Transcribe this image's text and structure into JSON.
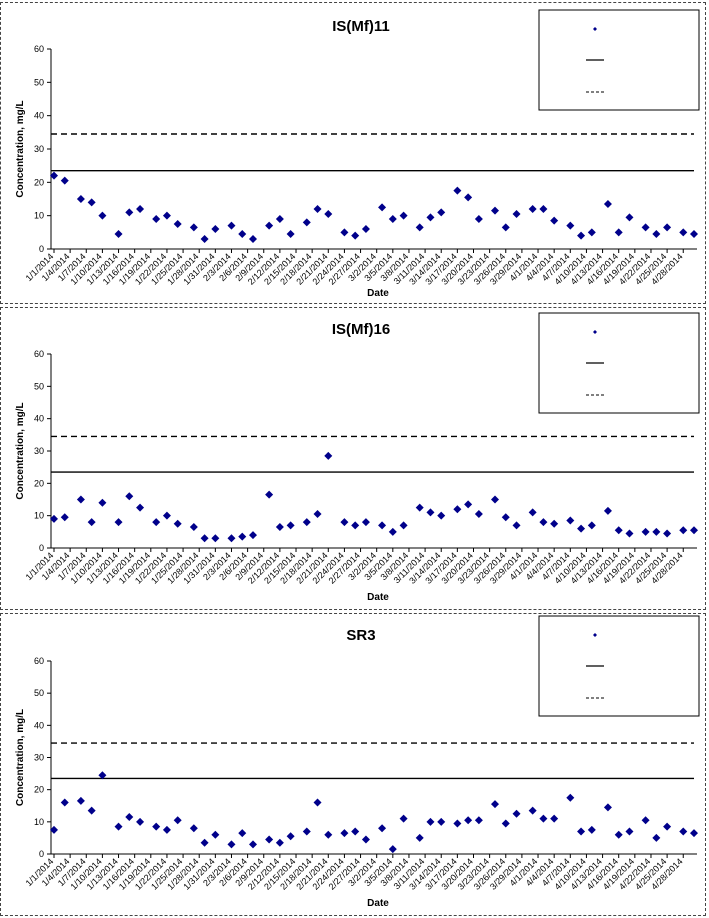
{
  "colors": {
    "marker": "#00008B",
    "line": "#000000"
  },
  "x_dates": [
    "1/1/2014",
    "1/4/2014",
    "1/7/2014",
    "1/10/2014",
    "1/13/2014",
    "1/16/2014",
    "1/19/2014",
    "1/22/2014",
    "1/25/2014",
    "1/28/2014",
    "1/31/2014",
    "2/3/2014",
    "2/6/2014",
    "2/9/2014",
    "2/12/2014",
    "2/15/2014",
    "2/18/2014",
    "2/21/2014",
    "2/24/2014",
    "2/27/2014",
    "3/2/2014",
    "3/5/2014",
    "3/8/2014",
    "3/11/2014",
    "3/14/2014",
    "3/17/2014",
    "3/20/2014",
    "3/23/2014",
    "3/26/2014",
    "3/29/2014",
    "4/1/2014",
    "4/4/2014",
    "4/7/2014",
    "4/10/2014",
    "4/13/2014",
    "4/16/2014",
    "4/19/2014",
    "4/22/2014",
    "4/25/2014",
    "4/28/2014"
  ],
  "chart_data": [
    {
      "type": "scatter",
      "title": "IS(Mf)11",
      "xlabel": "Date",
      "ylabel": "Concentration, mg/L",
      "ylim": [
        0,
        60
      ],
      "yticks": [
        0,
        10,
        20,
        30,
        40,
        50,
        60
      ],
      "grid": false,
      "legend_position": "top-right",
      "series": [
        {
          "style": "markers",
          "x": [
            "1/1/2014",
            "1/3/2014",
            "1/6/2014",
            "1/8/2014",
            "1/10/2014",
            "1/13/2014",
            "1/15/2014",
            "1/17/2014",
            "1/20/2014",
            "1/22/2014",
            "1/24/2014",
            "1/27/2014",
            "1/29/2014",
            "1/31/2014",
            "2/3/2014",
            "2/5/2014",
            "2/7/2014",
            "2/10/2014",
            "2/12/2014",
            "2/14/2014",
            "2/17/2014",
            "2/19/2014",
            "2/21/2014",
            "2/24/2014",
            "2/26/2014",
            "2/28/2014",
            "3/3/2014",
            "3/5/2014",
            "3/7/2014",
            "3/10/2014",
            "3/12/2014",
            "3/14/2014",
            "3/17/2014",
            "3/19/2014",
            "3/21/2014",
            "3/24/2014",
            "3/26/2014",
            "3/28/2014",
            "3/31/2014",
            "4/2/2014",
            "4/4/2014",
            "4/7/2014",
            "4/9/2014",
            "4/11/2014",
            "4/14/2014",
            "4/16/2014",
            "4/18/2014",
            "4/21/2014",
            "4/23/2014",
            "4/25/2014",
            "4/28/2014",
            "4/30/2014"
          ],
          "values": [
            22,
            20.5,
            15,
            14,
            10,
            4.5,
            11,
            12,
            9,
            10,
            7.5,
            6.5,
            3,
            6,
            7,
            4.5,
            3,
            7,
            9,
            4.5,
            8,
            12,
            10.5,
            5,
            4,
            6,
            12.5,
            9,
            10,
            6.5,
            9.5,
            11,
            17.5,
            15.5,
            9,
            11.5,
            6.5,
            10.5,
            12,
            12,
            8.5,
            7,
            4,
            5,
            13.5,
            5,
            9.5,
            6.5,
            4.5,
            6.5,
            5,
            4.5
          ]
        },
        {
          "style": "solid",
          "value": 23.5
        },
        {
          "style": "dashed",
          "value": 34.5
        }
      ]
    },
    {
      "type": "scatter",
      "title": "IS(Mf)16",
      "xlabel": "Date",
      "ylabel": "Concentration, mg/L",
      "ylim": [
        0,
        60
      ],
      "yticks": [
        0,
        10,
        20,
        30,
        40,
        50,
        60
      ],
      "grid": false,
      "legend_position": "top-right",
      "series": [
        {
          "style": "markers",
          "x": [
            "1/1/2014",
            "1/3/2014",
            "1/6/2014",
            "1/8/2014",
            "1/10/2014",
            "1/13/2014",
            "1/15/2014",
            "1/17/2014",
            "1/20/2014",
            "1/22/2014",
            "1/24/2014",
            "1/27/2014",
            "1/29/2014",
            "1/31/2014",
            "2/3/2014",
            "2/5/2014",
            "2/7/2014",
            "2/10/2014",
            "2/12/2014",
            "2/14/2014",
            "2/17/2014",
            "2/19/2014",
            "2/21/2014",
            "2/24/2014",
            "2/26/2014",
            "2/28/2014",
            "3/3/2014",
            "3/5/2014",
            "3/7/2014",
            "3/10/2014",
            "3/12/2014",
            "3/14/2014",
            "3/17/2014",
            "3/19/2014",
            "3/21/2014",
            "3/24/2014",
            "3/26/2014",
            "3/28/2014",
            "3/31/2014",
            "4/2/2014",
            "4/4/2014",
            "4/7/2014",
            "4/9/2014",
            "4/11/2014",
            "4/14/2014",
            "4/16/2014",
            "4/18/2014",
            "4/21/2014",
            "4/23/2014",
            "4/25/2014",
            "4/28/2014",
            "4/30/2014"
          ],
          "values": [
            9,
            9.5,
            15,
            8,
            14,
            8,
            16,
            12.5,
            8,
            10,
            7.5,
            6.5,
            3,
            3,
            3,
            3.5,
            4,
            16.5,
            6.5,
            7,
            8,
            10.5,
            28.5,
            8,
            7,
            8,
            7,
            5,
            7,
            12.5,
            11,
            10,
            12,
            13.5,
            10.5,
            15,
            9.5,
            7,
            11,
            8,
            7.5,
            8.5,
            6,
            7,
            11.5,
            5.5,
            4.5,
            5,
            5,
            4.5,
            5.5,
            5.5
          ]
        },
        {
          "style": "solid",
          "value": 23.5
        },
        {
          "style": "dashed",
          "value": 34.5
        }
      ]
    },
    {
      "type": "scatter",
      "title": "SR3",
      "xlabel": "Date",
      "ylabel": "Concentration, mg/L",
      "ylim": [
        0,
        60
      ],
      "yticks": [
        0,
        10,
        20,
        30,
        40,
        50,
        60
      ],
      "grid": false,
      "legend_position": "top-right",
      "series": [
        {
          "style": "markers",
          "x": [
            "1/1/2014",
            "1/3/2014",
            "1/6/2014",
            "1/8/2014",
            "1/10/2014",
            "1/13/2014",
            "1/15/2014",
            "1/17/2014",
            "1/20/2014",
            "1/22/2014",
            "1/24/2014",
            "1/27/2014",
            "1/29/2014",
            "1/31/2014",
            "2/3/2014",
            "2/5/2014",
            "2/7/2014",
            "2/10/2014",
            "2/12/2014",
            "2/14/2014",
            "2/17/2014",
            "2/19/2014",
            "2/21/2014",
            "2/24/2014",
            "2/26/2014",
            "2/28/2014",
            "3/3/2014",
            "3/5/2014",
            "3/7/2014",
            "3/10/2014",
            "3/12/2014",
            "3/14/2014",
            "3/17/2014",
            "3/19/2014",
            "3/21/2014",
            "3/24/2014",
            "3/26/2014",
            "3/28/2014",
            "3/31/2014",
            "4/2/2014",
            "4/4/2014",
            "4/7/2014",
            "4/9/2014",
            "4/11/2014",
            "4/14/2014",
            "4/16/2014",
            "4/18/2014",
            "4/21/2014",
            "4/23/2014",
            "4/25/2014",
            "4/28/2014",
            "4/30/2014"
          ],
          "values": [
            7.5,
            16,
            16.5,
            13.5,
            24.5,
            8.5,
            11.5,
            10,
            8.5,
            7.5,
            10.5,
            8,
            3.5,
            6,
            3,
            6.5,
            3,
            4.5,
            3.5,
            5.5,
            7,
            16,
            6,
            6.5,
            7,
            4.5,
            8,
            1.5,
            11,
            5,
            10,
            10,
            9.5,
            10.5,
            10.5,
            15.5,
            9.5,
            12.5,
            13.5,
            11,
            11,
            17.5,
            7,
            7.5,
            14.5,
            6,
            7,
            10.5,
            5,
            8.5,
            7,
            6.5
          ]
        },
        {
          "style": "solid",
          "value": 23.5
        },
        {
          "style": "dashed",
          "value": 34.5
        }
      ]
    }
  ]
}
